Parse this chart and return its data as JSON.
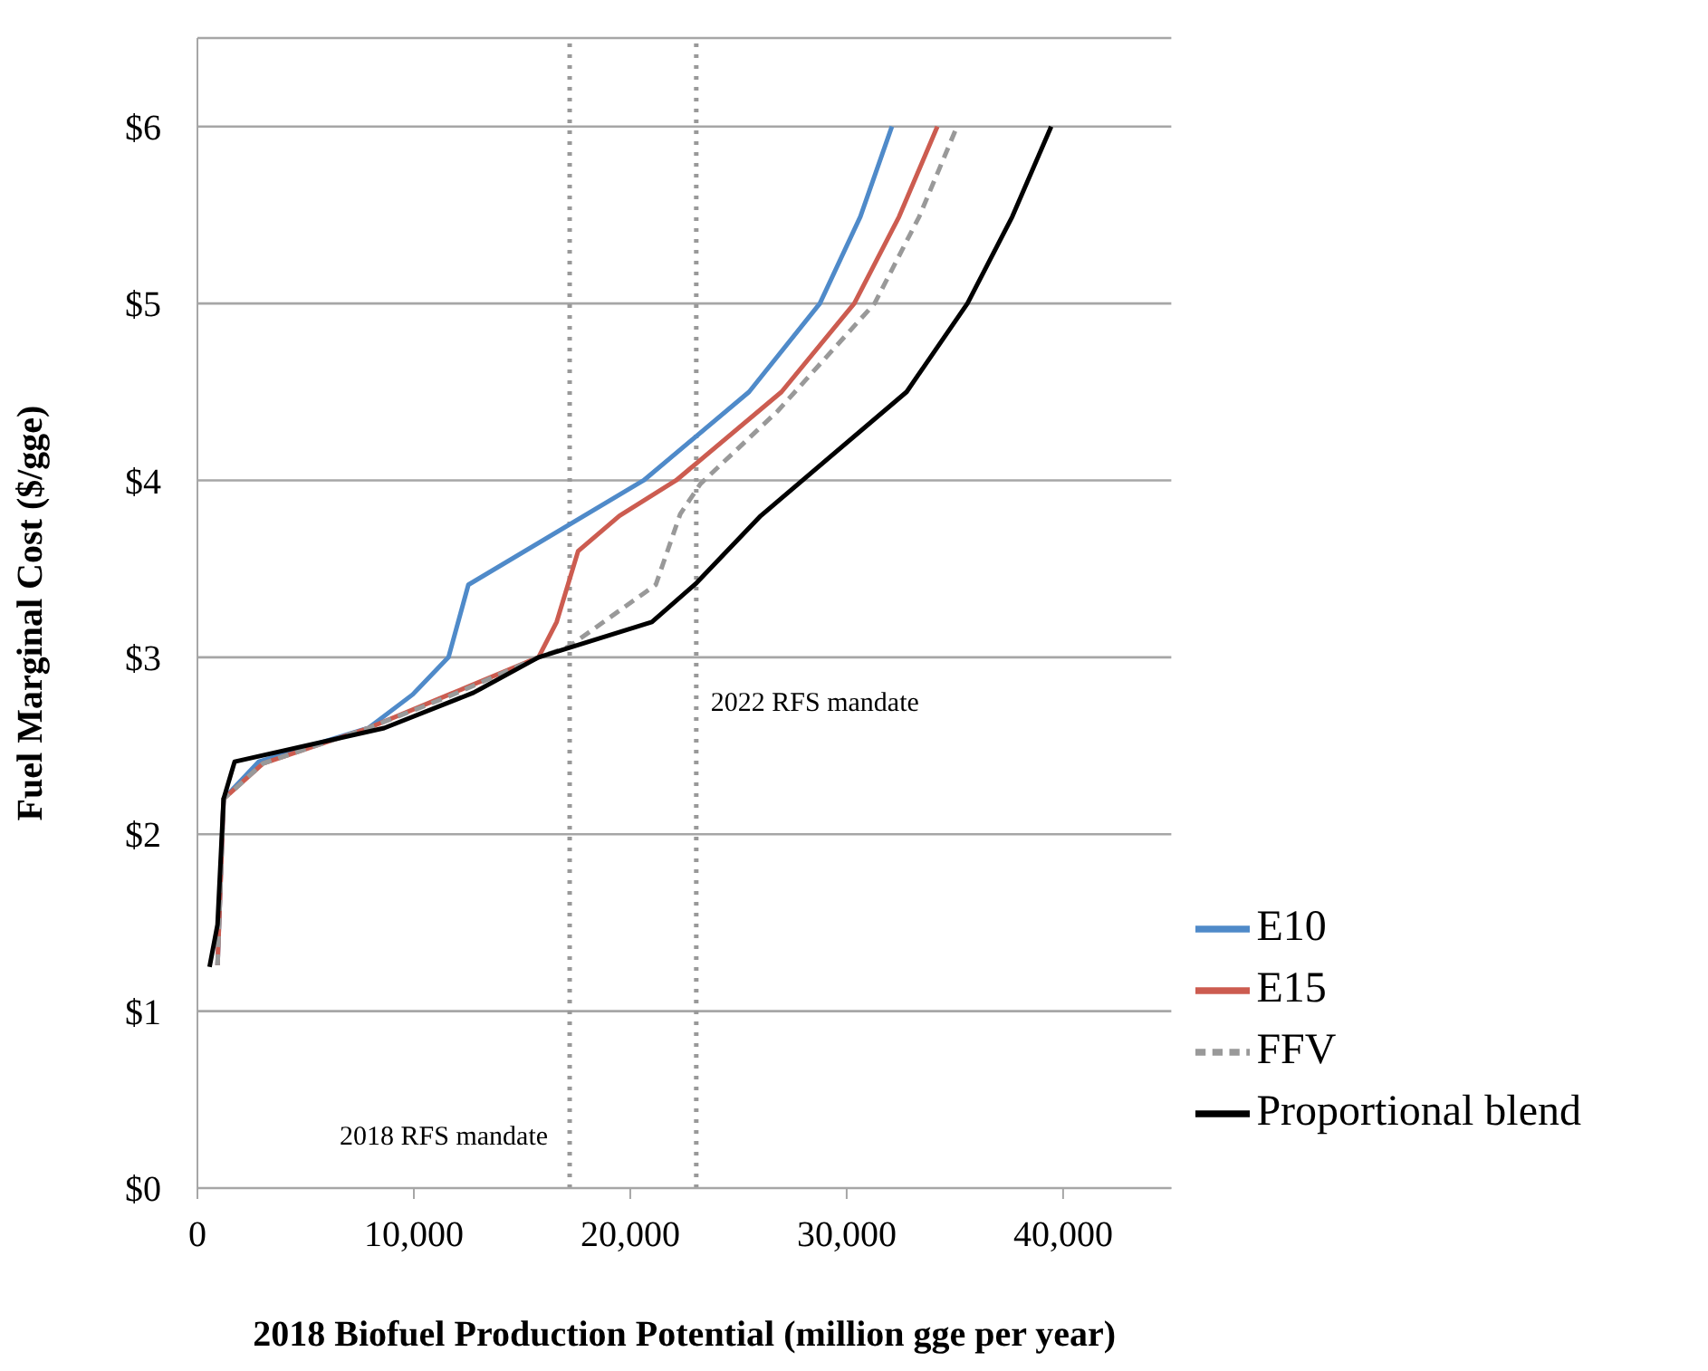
{
  "chart_data": {
    "type": "line",
    "xlabel": "2018 Biofuel Production Potential (million gge per year)",
    "ylabel": "Fuel Marginal Cost ($/gge)",
    "xlim": [
      0,
      45000
    ],
    "xticks": [
      0,
      {
        "value": 10000,
        "label": "10,000"
      },
      {
        "value": 20000,
        "label": "20,000"
      },
      {
        "value": 30000,
        "label": "30,000"
      },
      {
        "value": 40000,
        "label": "40,000"
      }
    ],
    "ylim": [
      0,
      6.5
    ],
    "yticks": [
      {
        "value": 0,
        "label": "$0"
      },
      {
        "value": 1,
        "label": "$1"
      },
      {
        "value": 2,
        "label": "$2"
      },
      {
        "value": 3,
        "label": "$3"
      },
      {
        "value": 4,
        "label": "$4"
      },
      {
        "value": 5,
        "label": "$5"
      },
      {
        "value": 6,
        "label": "$6"
      }
    ],
    "grid": "y",
    "legend": "bottom right",
    "marker": "none",
    "series": [
      {
        "name": "E10",
        "color": "#4f8ac9",
        "line_style": "solid",
        "x": [
          930,
          1210,
          2830,
          7900,
          9950,
          11600,
          12520,
          20620,
          25490,
          28760,
          30630,
          32090
        ],
        "values": [
          1.26,
          2.2,
          2.41,
          2.6,
          2.79,
          3.0,
          3.41,
          4.0,
          4.5,
          5.0,
          5.49,
          6.0
        ]
      },
      {
        "name": "E15",
        "color": "#cc5c50",
        "line_style": "solid",
        "x": [
          930,
          1210,
          3030,
          7900,
          11640,
          15760,
          16600,
          17590,
          19500,
          22120,
          26990,
          30350,
          32420,
          34190
        ],
        "values": [
          1.26,
          2.2,
          2.4,
          2.6,
          2.79,
          3.0,
          3.2,
          3.6,
          3.8,
          4.0,
          4.5,
          5.0,
          5.49,
          6.0
        ]
      },
      {
        "name": "FFV",
        "color": "#999999",
        "line_style": "dashed",
        "x": [
          930,
          1210,
          3030,
          7900,
          11640,
          15760,
          17160,
          21180,
          22310,
          23240,
          26800,
          31290,
          33350,
          35100
        ],
        "values": [
          1.26,
          2.2,
          2.4,
          2.6,
          2.78,
          3.0,
          3.06,
          3.41,
          3.81,
          3.98,
          4.39,
          5.0,
          5.49,
          6.0
        ]
      },
      {
        "name": "Proportional blend",
        "color": "#000000",
        "line_style": "solid",
        "x": [
          560,
          930,
          1210,
          1720,
          8630,
          12760,
          15760,
          21000,
          23060,
          26030,
          32770,
          35580,
          37650,
          39450
        ],
        "values": [
          1.25,
          1.49,
          2.2,
          2.41,
          2.6,
          2.8,
          3.0,
          3.2,
          3.42,
          3.8,
          4.5,
          5.0,
          5.49,
          6.0
        ]
      }
    ],
    "ref_lines": [
      {
        "axis": "x",
        "value": 17200,
        "label": "2018 RFS mandate",
        "color": "#999999",
        "line_style": "dotted"
      },
      {
        "axis": "x",
        "value": 23050,
        "label": "2022 RFS mandate",
        "color": "#999999",
        "line_style": "dotted"
      }
    ]
  }
}
